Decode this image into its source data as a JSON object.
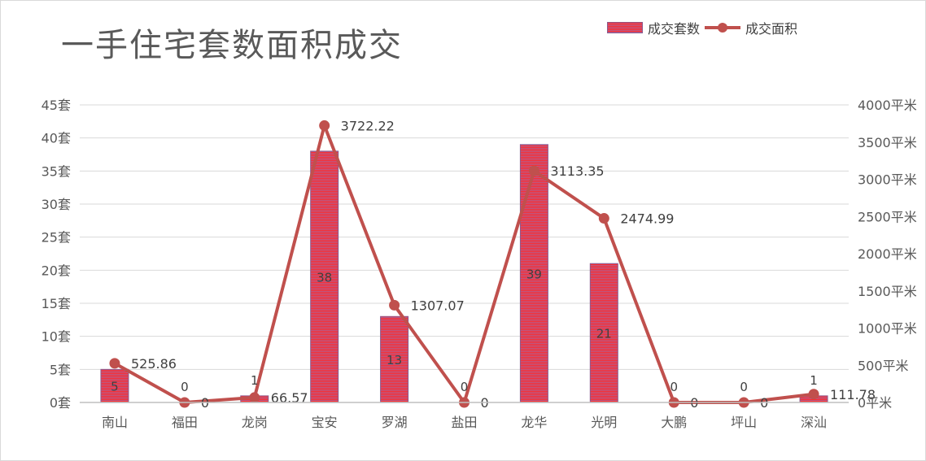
{
  "chart_data": {
    "type": "bar-line-combo",
    "title": "一手住宅套数面积成交",
    "categories": [
      "南山",
      "福田",
      "龙岗",
      "宝安",
      "罗湖",
      "盐田",
      "龙华",
      "光明",
      "大鹏",
      "坪山",
      "深汕"
    ],
    "series": [
      {
        "name": "成交套数",
        "type": "bar",
        "axis": "left",
        "values": [
          5,
          0,
          1,
          38,
          13,
          0,
          39,
          21,
          0,
          0,
          1
        ]
      },
      {
        "name": "成交面积",
        "type": "line",
        "axis": "right",
        "values": [
          525.86,
          0,
          66.57,
          3722.22,
          1307.07,
          0,
          3113.35,
          2474.99,
          0,
          0,
          111.78
        ]
      }
    ],
    "y_left": {
      "min": 0,
      "max": 45,
      "step": 5,
      "unit": "套"
    },
    "y_right": {
      "min": 0,
      "max": 4000,
      "step": 500,
      "unit": "平米"
    },
    "grid": true,
    "legend_position": "top-right",
    "colors": {
      "bar_fill": "#ff2b2b",
      "bar_stripe": "#b45c8c",
      "bar_border": "#8b5a8e",
      "line": "#c0504d",
      "grid": "#d9d9d9",
      "text": "#595959"
    }
  }
}
